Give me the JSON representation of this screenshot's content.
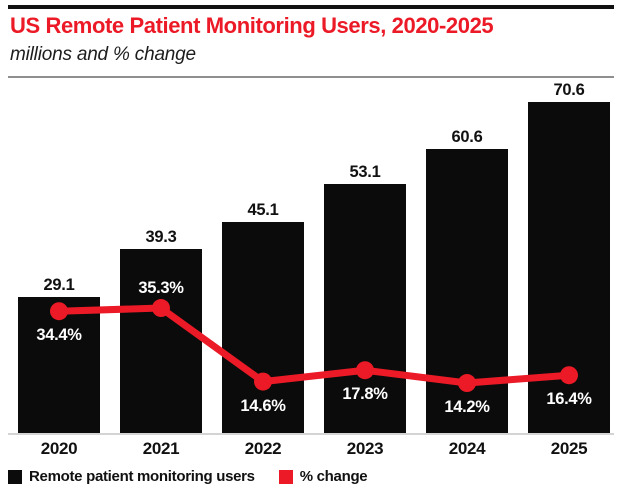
{
  "header": {
    "title": "US Remote Patient Monitoring Users, 2020-2025",
    "subtitle": "millions and % change"
  },
  "colors": {
    "accent_red": "#EB1A26",
    "bar_black": "#0B0B0B",
    "text_black": "#111111",
    "axis_line": "#D4D4D4",
    "header_divider": "#8F8F8F"
  },
  "chart_data": {
    "type": "bar+line combo",
    "title": "US Remote Patient Monitoring Users, 2020-2025",
    "subtitle": "millions and % change",
    "categories": [
      "2020",
      "2021",
      "2022",
      "2023",
      "2024",
      "2025"
    ],
    "series": [
      {
        "name": "Remote patient monitoring users",
        "type": "bar",
        "unit": "millions",
        "color": "#0B0B0B",
        "values": [
          29.1,
          39.3,
          45.1,
          53.1,
          60.6,
          70.6
        ],
        "data_labels": [
          "29.1",
          "39.3",
          "45.1",
          "53.1",
          "60.6",
          "70.6"
        ]
      },
      {
        "name": "% change",
        "type": "line",
        "unit": "percent",
        "color": "#EB1A26",
        "values": [
          34.4,
          35.3,
          14.6,
          17.8,
          14.2,
          16.4
        ],
        "data_labels": [
          "34.4%",
          "35.3%",
          "14.6%",
          "17.8%",
          "14.2%",
          "16.4%"
        ],
        "label_positions": [
          "below",
          "above",
          "below",
          "below",
          "below",
          "below"
        ]
      }
    ],
    "ylim_bars": [
      0,
      70.6
    ],
    "grid": false,
    "legend_position": "bottom"
  },
  "legend": {
    "items": [
      {
        "label": "Remote patient monitoring users",
        "color": "#0B0B0B"
      },
      {
        "label": "% change",
        "color": "#EB1A26"
      }
    ]
  }
}
